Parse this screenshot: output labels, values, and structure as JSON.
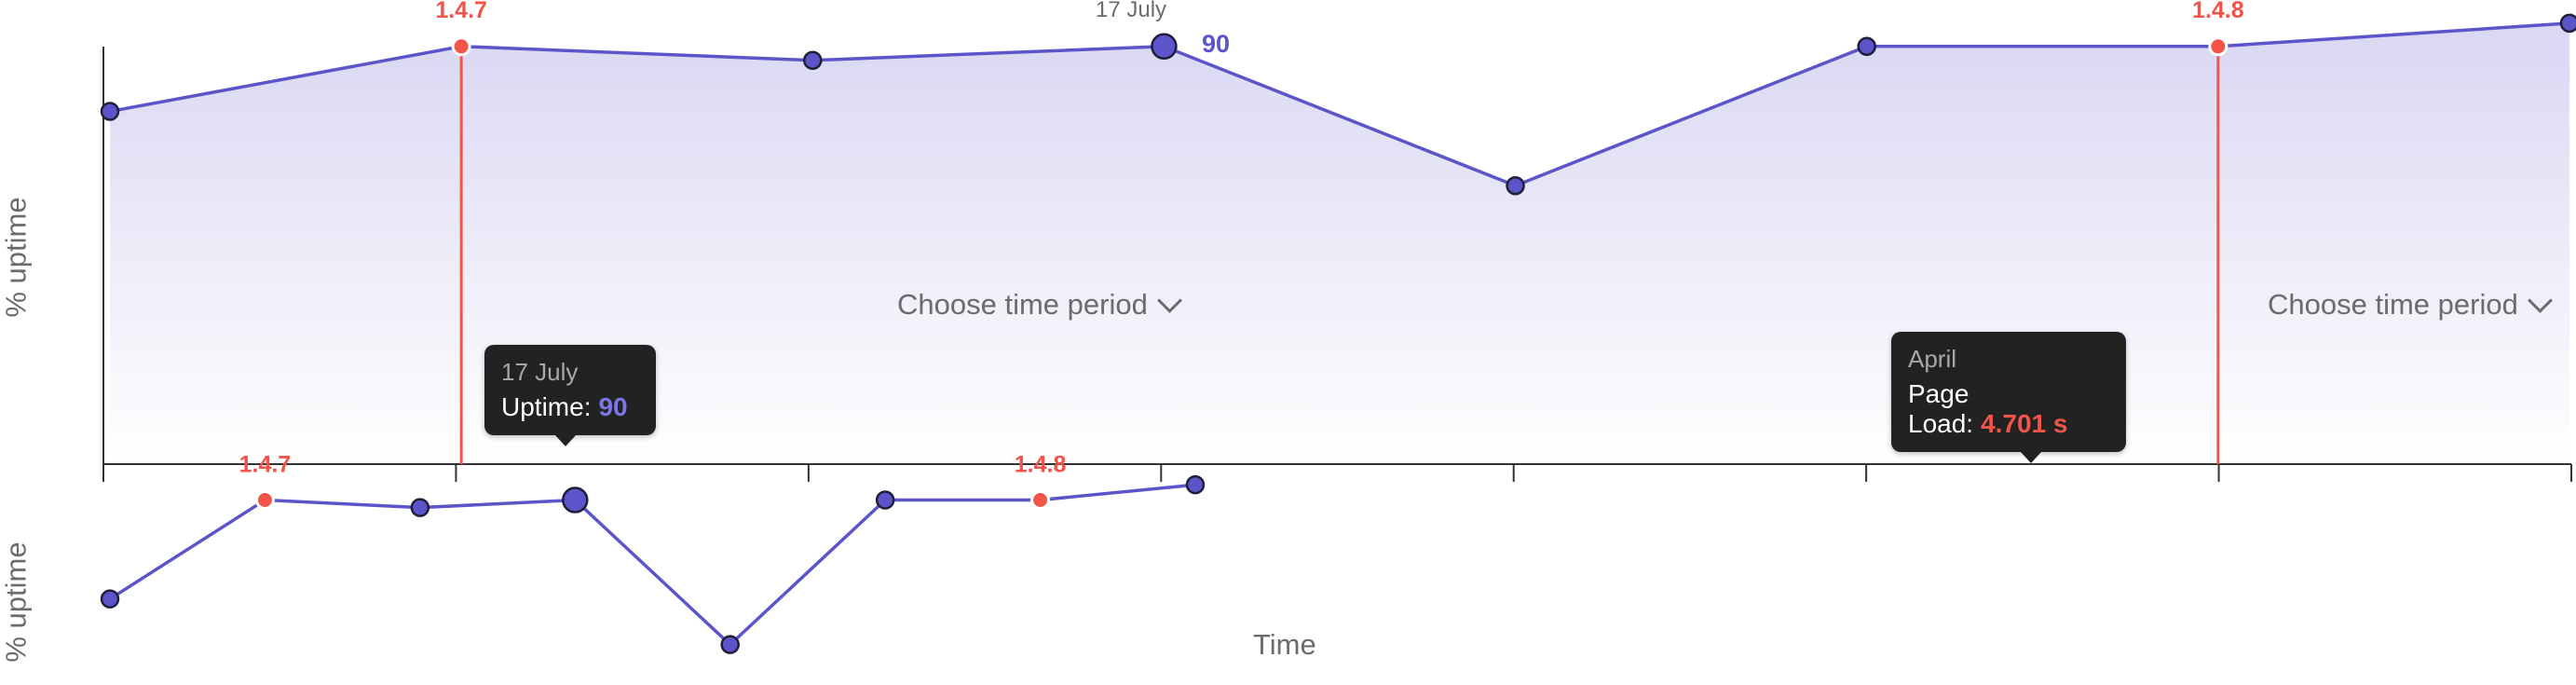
{
  "chart_data": [
    {
      "type": "area",
      "ylabel": "% uptime",
      "series": [
        {
          "values": [
            76,
            90,
            87,
            90,
            60,
            90,
            90,
            95
          ]
        }
      ],
      "ylim": [
        0,
        100
      ],
      "releases": [
        {
          "label": "1.4.7",
          "point_index": 1
        },
        {
          "label": "1.4.8",
          "point_index": 6
        }
      ],
      "highlight": {
        "point_index": 3,
        "date": "17 July",
        "value": "90"
      },
      "x_ticks": 8
    },
    {
      "type": "line",
      "ylabel": "% uptime",
      "xlabel": "Time",
      "series": [
        {
          "values": [
            72,
            85,
            84,
            85,
            66,
            85,
            85,
            87
          ]
        }
      ],
      "ylim": [
        64,
        88
      ],
      "releases": [
        {
          "label": "1.4.7",
          "point_index": 1
        },
        {
          "label": "1.4.8",
          "point_index": 6
        }
      ],
      "highlight": {
        "point_index": 3
      }
    }
  ],
  "controls": {
    "period_label_1": "Choose time period",
    "period_label_2": "Choose time period"
  },
  "tooltips": {
    "uptime": {
      "date": "17 July",
      "label": "Uptime:",
      "value": "90"
    },
    "pageload": {
      "date": "April",
      "label": "Page Load:",
      "value": "4.701 s"
    }
  },
  "colors": {
    "line": "#5b55c9",
    "point_fill": "#5b55c9",
    "release": "#f2544a",
    "area_top": "#d9d7f2",
    "area_bottom": "#ffffff"
  }
}
